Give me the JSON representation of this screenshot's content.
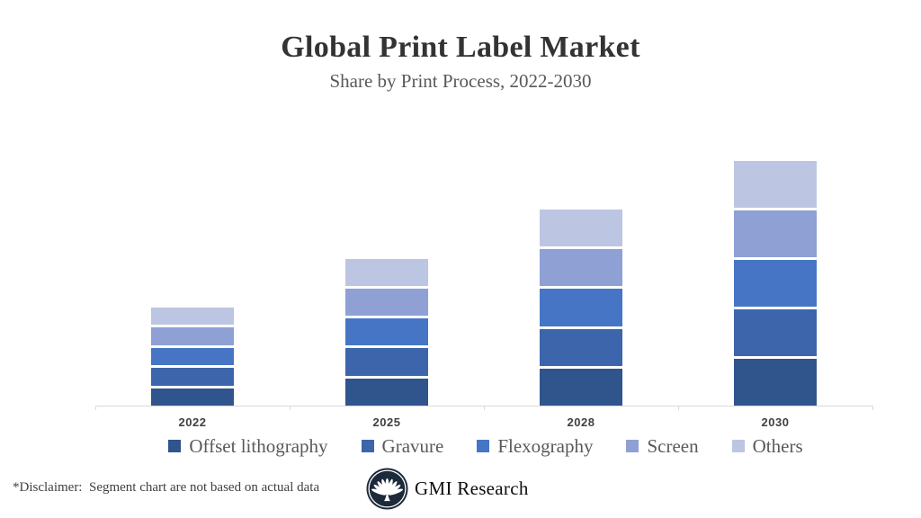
{
  "title": "Global Print Label Market",
  "subtitle": "Share by Print Process, 2022-2030",
  "chart_data": {
    "type": "bar",
    "stacked": true,
    "title": "Global Print Label Market",
    "subtitle": "Share by Print Process, 2022-2030",
    "categories": [
      "2022",
      "2025",
      "2028",
      "2030"
    ],
    "series": [
      {
        "name": "Offset lithography",
        "color": "#30548C",
        "values": [
          20,
          30,
          40,
          50
        ]
      },
      {
        "name": "Gravure",
        "color": "#3D65AB",
        "values": [
          20,
          30,
          40,
          50
        ]
      },
      {
        "name": "Flexography",
        "color": "#4775C6",
        "values": [
          20,
          30,
          40,
          50
        ]
      },
      {
        "name": "Screen",
        "color": "#8EA0D4",
        "values": [
          20,
          30,
          40,
          50
        ]
      },
      {
        "name": "Others",
        "color": "#BCC6E2",
        "values": [
          20,
          30,
          40,
          50
        ]
      }
    ],
    "ylim": [
      0,
      260
    ],
    "grid": false,
    "y_axis_visible": false,
    "legend_position": "bottom",
    "axis_color": "#d9d9d9"
  },
  "footer": {
    "disclaimer": "*Disclaimer:  Segment chart are not based on actual data",
    "brand": "GMI Research"
  }
}
